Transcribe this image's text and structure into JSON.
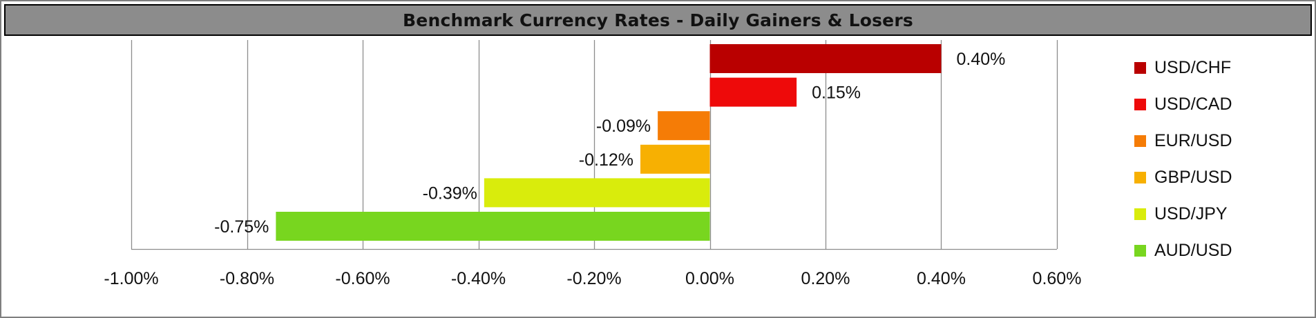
{
  "header": {
    "title": "Benchmark Currency Rates - Daily Gainers & Losers"
  },
  "chart_data": {
    "type": "bar",
    "orientation": "horizontal",
    "title": "Benchmark Currency Rates - Daily Gainers & Losers",
    "xlabel": "",
    "ylabel": "",
    "xlim": [
      -1.0,
      0.6
    ],
    "x_ticks": [
      -1.0,
      -0.8,
      -0.6,
      -0.4,
      -0.2,
      0.0,
      0.2,
      0.4,
      0.6
    ],
    "x_tick_labels": [
      "-1.00%",
      "-0.80%",
      "-0.60%",
      "-0.40%",
      "-0.20%",
      "0.00%",
      "0.20%",
      "0.40%",
      "0.60%"
    ],
    "grid": "vertical",
    "legend_position": "right",
    "series": [
      {
        "name": "USD/CHF",
        "value": 0.4,
        "label": "0.40%",
        "color": "#b90000"
      },
      {
        "name": "USD/CAD",
        "value": 0.15,
        "label": "0.15%",
        "color": "#ee0a0a"
      },
      {
        "name": "EUR/USD",
        "value": -0.09,
        "label": "-0.09%",
        "color": "#f57c06"
      },
      {
        "name": "GBP/USD",
        "value": -0.12,
        "label": "-0.12%",
        "color": "#f7b002"
      },
      {
        "name": "USD/JPY",
        "value": -0.39,
        "label": "-0.39%",
        "color": "#d9ec0c"
      },
      {
        "name": "AUD/USD",
        "value": -0.75,
        "label": "-0.75%",
        "color": "#78d61f"
      }
    ]
  }
}
